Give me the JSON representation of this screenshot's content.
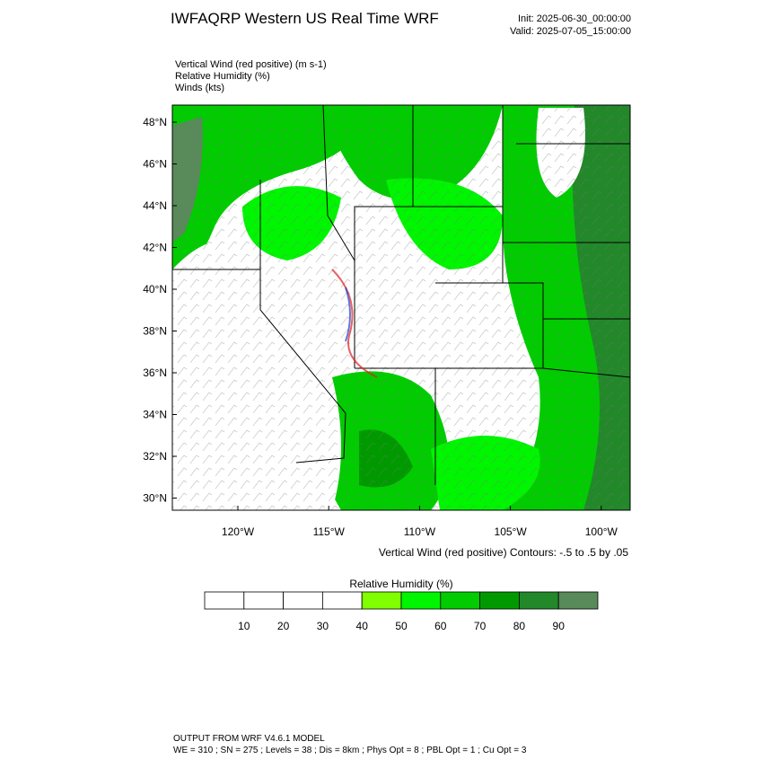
{
  "header": {
    "title": "IWFAQRP Western US Real Time WRF",
    "init": "Init: 2025-06-30_00:00:00",
    "valid": "Valid: 2025-07-05_15:00:00"
  },
  "fields": [
    "Vertical Wind (red positive)   (m s-1)",
    "Relative Humidity   (%)",
    "Winds   (kts)"
  ],
  "map": {
    "lat_labels": [
      "48°N",
      "46°N",
      "44°N",
      "42°N",
      "40°N",
      "38°N",
      "36°N",
      "34°N",
      "32°N",
      "30°N"
    ],
    "lon_labels": [
      "120°W",
      "115°W",
      "110°W",
      "105°W",
      "100°W"
    ],
    "contour_note": "Vertical Wind (red positive) Contours: -.5 to .5 by .05"
  },
  "colorbar": {
    "title": "Relative Humidity  (%)",
    "colors": [
      "#ffffff",
      "#ffffff",
      "#ffffff",
      "#ffffff",
      "#80ff00",
      "#00f500",
      "#00cc00",
      "#009a00",
      "#22882a",
      "#588a5a"
    ],
    "ticks": [
      10,
      20,
      30,
      40,
      50,
      60,
      70,
      80,
      90
    ]
  },
  "footer": {
    "line1": "OUTPUT FROM WRF V4.6.1 MODEL",
    "line2": "WE = 310 ; SN = 275 ; Levels = 38 ; Dis = 8km ; Phys Opt = 8 ; PBL Opt = 1 ; Cu Opt = 3"
  }
}
